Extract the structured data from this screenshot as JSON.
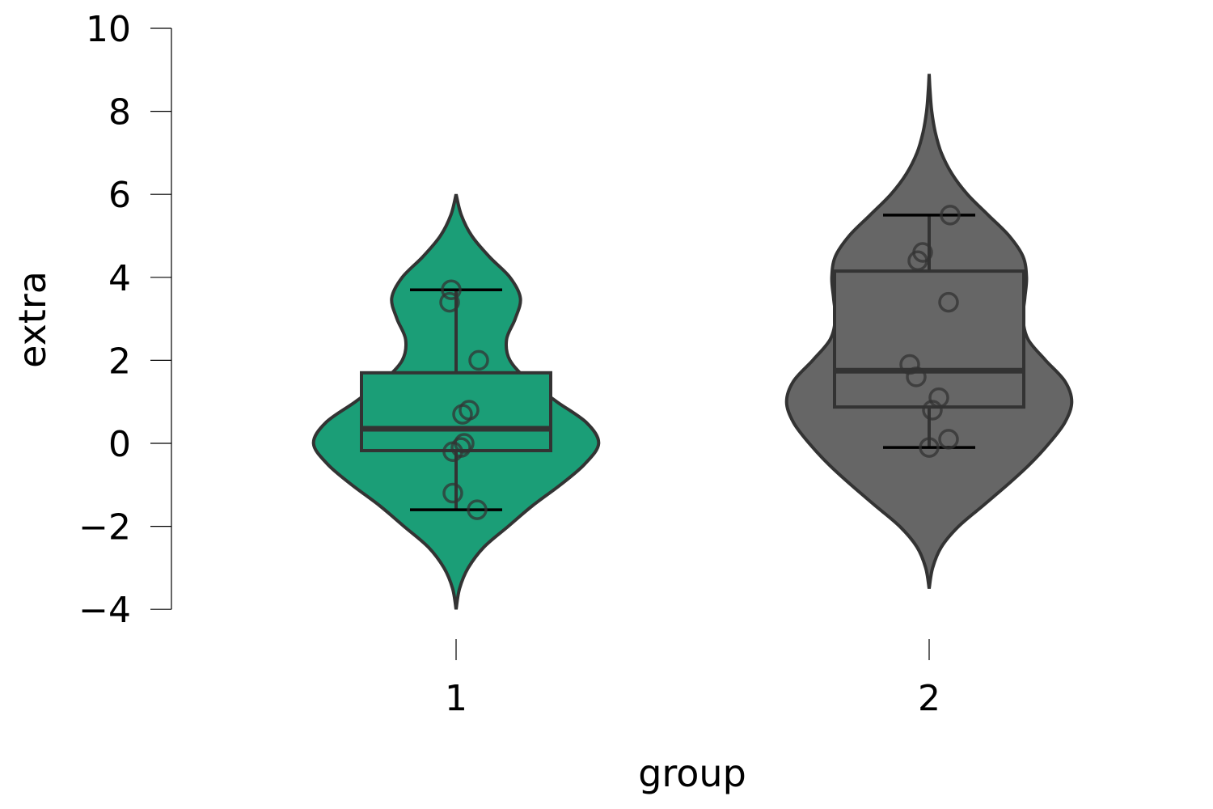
{
  "chart_data": {
    "type": "violin",
    "xlabel": "group",
    "ylabel": "extra",
    "categories": [
      "1",
      "2"
    ],
    "ylim": [
      -4,
      10
    ],
    "y_ticks": [
      -4,
      -2,
      0,
      2,
      4,
      6,
      8,
      10
    ],
    "y_tick_labels": [
      "−4",
      "−2",
      "0",
      "2",
      "4",
      "6",
      "8",
      "10"
    ],
    "grid": false,
    "legend": "none",
    "groups": [
      {
        "category": "1",
        "color": "#1b9e77",
        "points": [
          0.7,
          -1.6,
          -0.2,
          -1.2,
          -0.1,
          3.4,
          3.7,
          0.8,
          0.0,
          2.0
        ],
        "box": {
          "q1": -0.175,
          "median": 0.35,
          "q3": 1.7,
          "whisker_low": -1.6,
          "whisker_high": 3.7
        },
        "violin": {
          "y": [
            -4.0,
            -3.5,
            -3.0,
            -2.5,
            -2.0,
            -1.5,
            -1.0,
            -0.5,
            0.0,
            0.5,
            1.0,
            1.5,
            2.0,
            2.5,
            3.0,
            3.5,
            4.0,
            4.5,
            5.0,
            5.5,
            6.0
          ],
          "width": [
            0.0,
            0.02,
            0.07,
            0.16,
            0.3,
            0.44,
            0.6,
            0.74,
            0.82,
            0.75,
            0.58,
            0.42,
            0.31,
            0.29,
            0.34,
            0.37,
            0.31,
            0.19,
            0.09,
            0.03,
            0.0
          ]
        }
      },
      {
        "category": "2",
        "color": "#666666",
        "points": [
          1.9,
          0.8,
          1.1,
          0.1,
          -0.1,
          4.4,
          5.5,
          1.6,
          4.6,
          3.4
        ],
        "box": {
          "q1": 0.875,
          "median": 1.75,
          "q3": 4.15,
          "whisker_low": -0.1,
          "whisker_high": 5.5
        },
        "violin": {
          "y": [
            -3.5,
            -3.0,
            -2.5,
            -2.0,
            -1.5,
            -1.0,
            -0.5,
            0.0,
            0.5,
            1.0,
            1.5,
            2.0,
            2.5,
            3.0,
            3.5,
            4.0,
            4.5,
            5.0,
            5.5,
            6.0,
            6.5,
            7.0,
            7.5,
            8.0,
            8.5,
            8.9
          ],
          "width": [
            0.0,
            0.02,
            0.07,
            0.17,
            0.31,
            0.45,
            0.58,
            0.69,
            0.78,
            0.82,
            0.78,
            0.67,
            0.57,
            0.54,
            0.55,
            0.56,
            0.54,
            0.46,
            0.34,
            0.22,
            0.13,
            0.07,
            0.035,
            0.015,
            0.005,
            0.0
          ]
        }
      }
    ]
  }
}
